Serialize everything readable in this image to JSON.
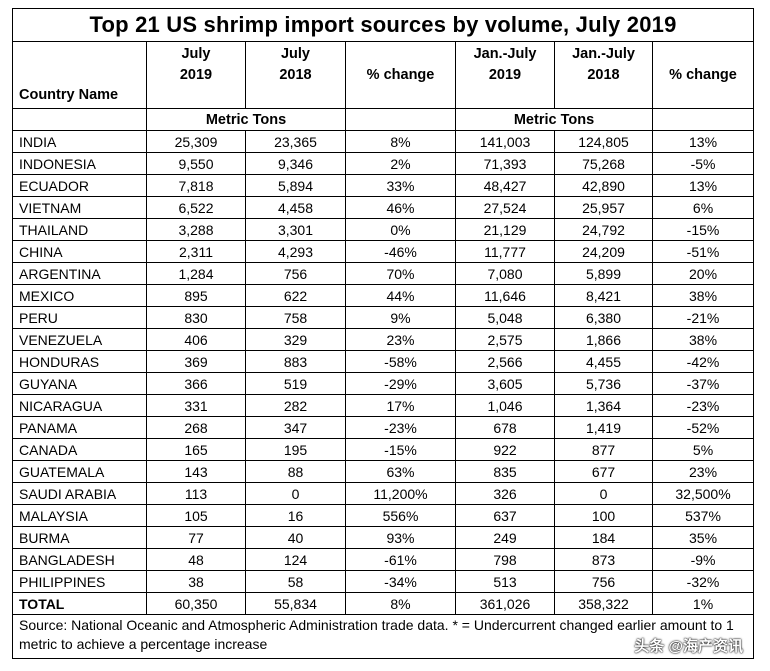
{
  "title": "Top 21 US shrimp import sources by volume, July 2019",
  "headers": {
    "country": "Country Name",
    "july2019_l1": "July",
    "july2019_l2": "2019",
    "july2018_l1": "July",
    "july2018_l2": "2018",
    "pct1": "% change",
    "jj2019_l1": "Jan.-July",
    "jj2019_l2": "2019",
    "jj2018_l1": "Jan.-July",
    "jj2018_l2": "2018",
    "pct2": "% change"
  },
  "units": {
    "left": "Metric Tons",
    "right": "Metric Tons"
  },
  "rows": [
    {
      "country": "INDIA",
      "jul2019": "25,309",
      "jul2018": "23,365",
      "pct": "8%",
      "jj2019": "141,003",
      "jj2018": "124,805",
      "jjpct": "13%"
    },
    {
      "country": "INDONESIA",
      "jul2019": "9,550",
      "jul2018": "9,346",
      "pct": "2%",
      "jj2019": "71,393",
      "jj2018": "75,268",
      "jjpct": "-5%"
    },
    {
      "country": "ECUADOR",
      "jul2019": "7,818",
      "jul2018": "5,894",
      "pct": "33%",
      "jj2019": "48,427",
      "jj2018": "42,890",
      "jjpct": "13%"
    },
    {
      "country": "VIETNAM",
      "jul2019": "6,522",
      "jul2018": "4,458",
      "pct": "46%",
      "jj2019": "27,524",
      "jj2018": "25,957",
      "jjpct": "6%"
    },
    {
      "country": "THAILAND",
      "jul2019": "3,288",
      "jul2018": "3,301",
      "pct": "0%",
      "jj2019": "21,129",
      "jj2018": "24,792",
      "jjpct": "-15%"
    },
    {
      "country": "CHINA",
      "jul2019": "2,311",
      "jul2018": "4,293",
      "pct": "-46%",
      "jj2019": "11,777",
      "jj2018": "24,209",
      "jjpct": "-51%"
    },
    {
      "country": "ARGENTINA",
      "jul2019": "1,284",
      "jul2018": "756",
      "pct": "70%",
      "jj2019": "7,080",
      "jj2018": "5,899",
      "jjpct": "20%"
    },
    {
      "country": "MEXICO",
      "jul2019": "895",
      "jul2018": "622",
      "pct": "44%",
      "jj2019": "11,646",
      "jj2018": "8,421",
      "jjpct": "38%"
    },
    {
      "country": "PERU",
      "jul2019": "830",
      "jul2018": "758",
      "pct": "9%",
      "jj2019": "5,048",
      "jj2018": "6,380",
      "jjpct": "-21%"
    },
    {
      "country": "VENEZUELA",
      "jul2019": "406",
      "jul2018": "329",
      "pct": "23%",
      "jj2019": "2,575",
      "jj2018": "1,866",
      "jjpct": "38%"
    },
    {
      "country": "HONDURAS",
      "jul2019": "369",
      "jul2018": "883",
      "pct": "-58%",
      "jj2019": "2,566",
      "jj2018": "4,455",
      "jjpct": "-42%"
    },
    {
      "country": "GUYANA",
      "jul2019": "366",
      "jul2018": "519",
      "pct": "-29%",
      "jj2019": "3,605",
      "jj2018": "5,736",
      "jjpct": "-37%"
    },
    {
      "country": "NICARAGUA",
      "jul2019": "331",
      "jul2018": "282",
      "pct": "17%",
      "jj2019": "1,046",
      "jj2018": "1,364",
      "jjpct": "-23%"
    },
    {
      "country": "PANAMA",
      "jul2019": "268",
      "jul2018": "347",
      "pct": "-23%",
      "jj2019": "678",
      "jj2018": "1,419",
      "jjpct": "-52%"
    },
    {
      "country": "CANADA",
      "jul2019": "165",
      "jul2018": "195",
      "pct": "-15%",
      "jj2019": "922",
      "jj2018": "877",
      "jjpct": "5%"
    },
    {
      "country": "GUATEMALA",
      "jul2019": "143",
      "jul2018": "88",
      "pct": "63%",
      "jj2019": "835",
      "jj2018": "677",
      "jjpct": "23%"
    },
    {
      "country": "SAUDI ARABIA",
      "jul2019": "113",
      "jul2018": "0",
      "pct": "11,200%",
      "jj2019": "326",
      "jj2018": "0",
      "jjpct": "32,500%"
    },
    {
      "country": "MALAYSIA",
      "jul2019": "105",
      "jul2018": "16",
      "pct": "556%",
      "jj2019": "637",
      "jj2018": "100",
      "jjpct": "537%"
    },
    {
      "country": "BURMA",
      "jul2019": "77",
      "jul2018": "40",
      "pct": "93%",
      "jj2019": "249",
      "jj2018": "184",
      "jjpct": "35%"
    },
    {
      "country": "BANGLADESH",
      "jul2019": "48",
      "jul2018": "124",
      "pct": "-61%",
      "jj2019": "798",
      "jj2018": "873",
      "jjpct": "-9%"
    },
    {
      "country": "PHILIPPINES",
      "jul2019": "38",
      "jul2018": "58",
      "pct": "-34%",
      "jj2019": "513",
      "jj2018": "756",
      "jjpct": "-32%"
    }
  ],
  "total": {
    "country": "TOTAL",
    "jul2019": "60,350",
    "jul2018": "55,834",
    "pct": "8%",
    "jj2019": "361,026",
    "jj2018": "358,322",
    "jjpct": "1%"
  },
  "footnote": "Source: National Oceanic and Atmospheric Administration trade data. * = Undercurrent changed earlier amount to 1 metric to achieve a percentage increase",
  "watermark": "头条 @海产资讯"
}
